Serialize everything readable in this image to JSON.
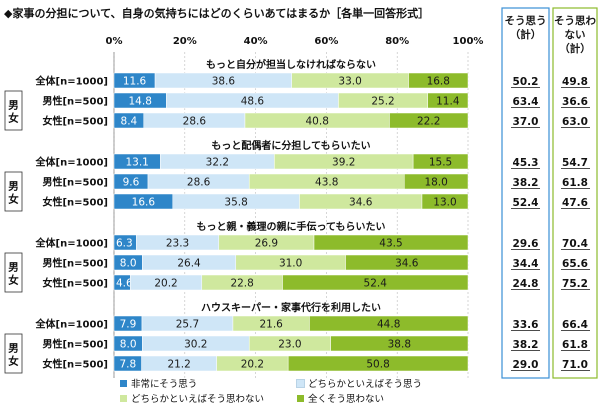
{
  "chart_data": {
    "type": "bar",
    "orientation": "horizontal-stacked-100",
    "title": "◆家事の分担について、自身の気持ちにはどのくらいあてはまるか［各単一回答形式］",
    "x_ticks": [
      "0%",
      "20%",
      "40%",
      "60%",
      "80%",
      "100%"
    ],
    "xlim": [
      0,
      100
    ],
    "column_headers": {
      "agree": "そう思う（計）",
      "disagree": "そう思わない（計）"
    },
    "legend": [
      {
        "name": "非常にそう思う",
        "color": "#2e86c9"
      },
      {
        "name": "どちらかといえばそう思う",
        "color": "#cfe6f7"
      },
      {
        "name": "どちらかといえばそう思わない",
        "color": "#cfe89e"
      },
      {
        "name": "全くそう思わない",
        "color": "#8dbb2b"
      }
    ],
    "group_label": "男女",
    "sections": [
      {
        "title": "もっと自分が担当しなければならない",
        "rows": [
          {
            "label": "全体[n=1000]",
            "values": [
              11.6,
              38.6,
              33.0,
              16.8
            ],
            "agree": "50.2",
            "disagree": "49.8"
          },
          {
            "label": "男性[n=500]",
            "values": [
              14.8,
              48.6,
              25.2,
              11.4
            ],
            "agree": "63.4",
            "disagree": "36.6"
          },
          {
            "label": "女性[n=500]",
            "values": [
              8.4,
              28.6,
              40.8,
              22.2
            ],
            "agree": "37.0",
            "disagree": "63.0"
          }
        ]
      },
      {
        "title": "もっと配偶者に分担してもらいたい",
        "rows": [
          {
            "label": "全体[n=1000]",
            "values": [
              13.1,
              32.2,
              39.2,
              15.5
            ],
            "agree": "45.3",
            "disagree": "54.7"
          },
          {
            "label": "男性[n=500]",
            "values": [
              9.6,
              28.6,
              43.8,
              18.0
            ],
            "agree": "38.2",
            "disagree": "61.8"
          },
          {
            "label": "女性[n=500]",
            "values": [
              16.6,
              35.8,
              34.6,
              13.0
            ],
            "agree": "52.4",
            "disagree": "47.6"
          }
        ]
      },
      {
        "title": "もっと親・義理の親に手伝ってもらいたい",
        "rows": [
          {
            "label": "全体[n=1000]",
            "values": [
              6.3,
              23.3,
              26.9,
              43.5
            ],
            "agree": "29.6",
            "disagree": "70.4"
          },
          {
            "label": "男性[n=500]",
            "values": [
              8.0,
              26.4,
              31.0,
              34.6
            ],
            "agree": "34.4",
            "disagree": "65.6"
          },
          {
            "label": "女性[n=500]",
            "values": [
              4.6,
              20.2,
              22.8,
              52.4
            ],
            "agree": "24.8",
            "disagree": "75.2"
          }
        ]
      },
      {
        "title": "ハウスキーパー・家事代行を利用したい",
        "rows": [
          {
            "label": "全体[n=1000]",
            "values": [
              7.9,
              25.7,
              21.6,
              44.8
            ],
            "agree": "33.6",
            "disagree": "66.4"
          },
          {
            "label": "男性[n=500]",
            "values": [
              8.0,
              30.2,
              23.0,
              38.8
            ],
            "agree": "38.2",
            "disagree": "61.8"
          },
          {
            "label": "女性[n=500]",
            "values": [
              7.8,
              21.2,
              20.2,
              50.8
            ],
            "agree": "29.0",
            "disagree": "71.0"
          }
        ]
      }
    ]
  }
}
